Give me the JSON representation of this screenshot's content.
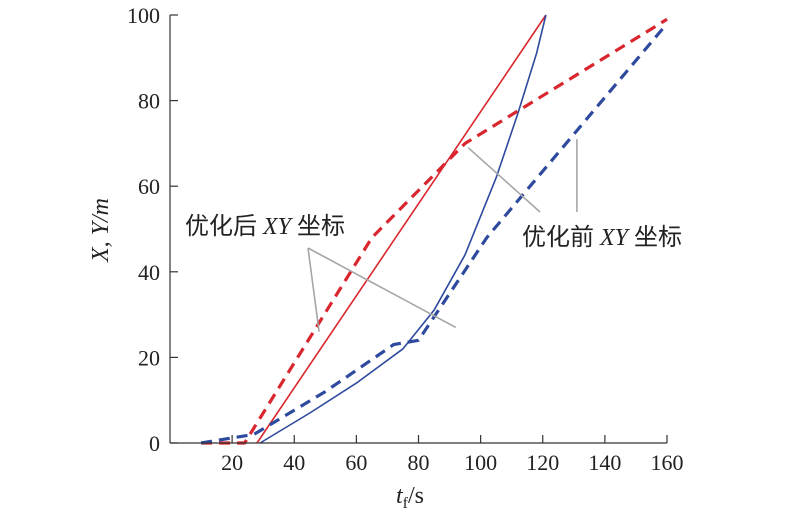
{
  "chart_data": {
    "type": "line",
    "xlabel": "t",
    "xlabel_sub": "f",
    "xlabel_unit": "/s",
    "ylabel": "X, Y/m",
    "xlim": [
      0,
      160
    ],
    "ylim": [
      0,
      100
    ],
    "x_ticks": [
      20,
      40,
      60,
      80,
      100,
      120,
      140,
      160
    ],
    "y_ticks": [
      0,
      20,
      40,
      60,
      80,
      100
    ],
    "grid": false,
    "annotations": [
      {
        "text": "优化后 XY 坐标",
        "targets": [
          "opt-red-solid",
          "opt-blue-solid"
        ]
      },
      {
        "text": "优化前 XY 坐标",
        "targets": [
          "pre-red-dashed",
          "pre-blue-dashed"
        ]
      }
    ],
    "series": [
      {
        "id": "opt-red-solid",
        "color": "#d9262e",
        "dash": false,
        "x": [
          28,
          121
        ],
        "y": [
          0,
          100
        ]
      },
      {
        "id": "opt-blue-solid",
        "color": "#2e4a9e",
        "dash": false,
        "x": [
          29,
          45,
          60,
          75,
          85,
          95,
          105,
          112,
          118,
          121
        ],
        "y": [
          0,
          7,
          14,
          22,
          31,
          44,
          62,
          77,
          91,
          100
        ]
      },
      {
        "id": "pre-red-dashed",
        "color": "#d9262e",
        "dash": true,
        "x": [
          10,
          24,
          65,
          95,
          160
        ],
        "y": [
          0,
          0,
          48,
          70,
          99
        ]
      },
      {
        "id": "pre-blue-dashed",
        "color": "#2e4a9e",
        "dash": true,
        "x": [
          10,
          27,
          50,
          72,
          80,
          102,
          160
        ],
        "y": [
          0,
          2,
          12,
          23,
          24,
          48,
          98
        ]
      }
    ]
  }
}
